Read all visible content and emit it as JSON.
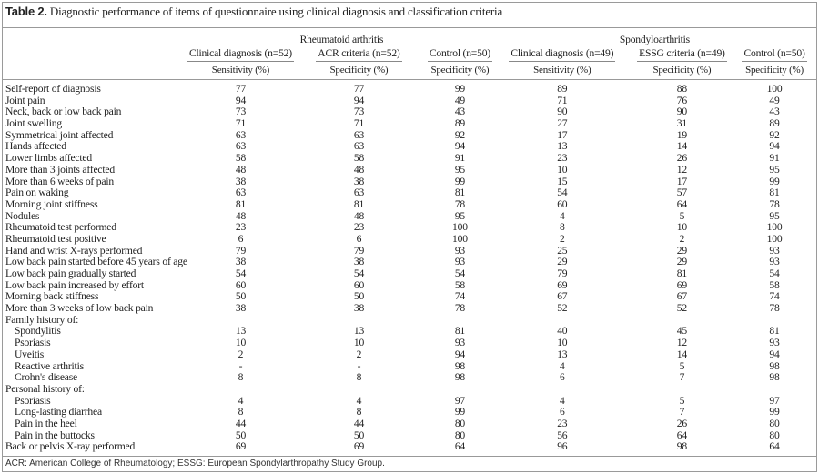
{
  "title": {
    "label": "Table 2.",
    "text": "Diagnostic performance of items of questionnaire using clinical diagnosis and classification criteria"
  },
  "groups": [
    "Rheumatoid arthritis",
    "Spondyloarthritis"
  ],
  "columns": [
    "Clinical diagnosis (n=52)",
    "ACR criteria (n=52)",
    "Control (n=50)",
    "Clinical diagnosis (n=49)",
    "ESSG criteria (n=49)",
    "Control (n=50)"
  ],
  "metrics": [
    "Sensitivity (%)",
    "Specificity (%)",
    "Specificity (%)",
    "Sensitivity (%)",
    "Specificity (%)",
    "Specificity (%)"
  ],
  "rows": [
    {
      "label": "Self-report of diagnosis",
      "values": [
        "77",
        "77",
        "99",
        "89",
        "88",
        "100"
      ]
    },
    {
      "label": "Joint pain",
      "values": [
        "94",
        "94",
        "49",
        "71",
        "76",
        "49"
      ]
    },
    {
      "label": "Neck, back or low back pain",
      "values": [
        "73",
        "73",
        "43",
        "90",
        "90",
        "43"
      ]
    },
    {
      "label": "Joint swelling",
      "values": [
        "71",
        "71",
        "89",
        "27",
        "31",
        "89"
      ]
    },
    {
      "label": "Symmetrical joint affected",
      "values": [
        "63",
        "63",
        "92",
        "17",
        "19",
        "92"
      ]
    },
    {
      "label": "Hands affected",
      "values": [
        "63",
        "63",
        "94",
        "13",
        "14",
        "94"
      ]
    },
    {
      "label": "Lower limbs affected",
      "values": [
        "58",
        "58",
        "91",
        "23",
        "26",
        "91"
      ]
    },
    {
      "label": "More than 3 joints affected",
      "values": [
        "48",
        "48",
        "95",
        "10",
        "12",
        "95"
      ]
    },
    {
      "label": "More than 6 weeks of pain",
      "values": [
        "38",
        "38",
        "99",
        "15",
        "17",
        "99"
      ]
    },
    {
      "label": "Pain on waking",
      "values": [
        "63",
        "63",
        "81",
        "54",
        "57",
        "81"
      ]
    },
    {
      "label": "Morning joint stiffness",
      "values": [
        "81",
        "81",
        "78",
        "60",
        "64",
        "78"
      ]
    },
    {
      "label": "Nodules",
      "values": [
        "48",
        "48",
        "95",
        "4",
        "5",
        "95"
      ]
    },
    {
      "label": "Rheumatoid test performed",
      "values": [
        "23",
        "23",
        "100",
        "8",
        "10",
        "100"
      ]
    },
    {
      "label": "Rheumatoid test positive",
      "values": [
        "6",
        "6",
        "100",
        "2",
        "2",
        "100"
      ]
    },
    {
      "label": "Hand and wrist X-rays performed",
      "values": [
        "79",
        "79",
        "93",
        "25",
        "29",
        "93"
      ]
    },
    {
      "label": "Low back pain started before 45 years of age",
      "values": [
        "38",
        "38",
        "93",
        "29",
        "29",
        "93"
      ]
    },
    {
      "label": "Low back pain gradually started",
      "values": [
        "54",
        "54",
        "54",
        "79",
        "81",
        "54"
      ]
    },
    {
      "label": "Low back pain increased by effort",
      "values": [
        "60",
        "60",
        "58",
        "69",
        "69",
        "58"
      ]
    },
    {
      "label": "Morning back stiffness",
      "values": [
        "50",
        "50",
        "74",
        "67",
        "67",
        "74"
      ]
    },
    {
      "label": "More than 3 weeks of low back pain",
      "values": [
        "38",
        "38",
        "78",
        "52",
        "52",
        "78"
      ]
    },
    {
      "label": "Family history of:",
      "values": [
        "",
        "",
        "",
        "",
        "",
        ""
      ],
      "section": true
    },
    {
      "label": "Spondylitis",
      "values": [
        "13",
        "13",
        "81",
        "40",
        "45",
        "81"
      ],
      "indent": true
    },
    {
      "label": "Psoriasis",
      "values": [
        "10",
        "10",
        "93",
        "10",
        "12",
        "93"
      ],
      "indent": true
    },
    {
      "label": "Uveitis",
      "values": [
        "2",
        "2",
        "94",
        "13",
        "14",
        "94"
      ],
      "indent": true
    },
    {
      "label": "Reactive arthritis",
      "values": [
        "-",
        "-",
        "98",
        "4",
        "5",
        "98"
      ],
      "indent": true
    },
    {
      "label": "Crohn's disease",
      "values": [
        "8",
        "8",
        "98",
        "6",
        "7",
        "98"
      ],
      "indent": true
    },
    {
      "label": "Personal history of:",
      "values": [
        "",
        "",
        "",
        "",
        "",
        ""
      ],
      "section": true
    },
    {
      "label": "Psoriasis",
      "values": [
        "4",
        "4",
        "97",
        "4",
        "5",
        "97"
      ],
      "indent": true
    },
    {
      "label": "Long-lasting diarrhea",
      "values": [
        "8",
        "8",
        "99",
        "6",
        "7",
        "99"
      ],
      "indent": true
    },
    {
      "label": "Pain in the heel",
      "values": [
        "44",
        "44",
        "80",
        "23",
        "26",
        "80"
      ],
      "indent": true
    },
    {
      "label": "Pain in the buttocks",
      "values": [
        "50",
        "50",
        "80",
        "56",
        "64",
        "80"
      ],
      "indent": true
    },
    {
      "label": "Back or pelvis X-ray performed",
      "values": [
        "69",
        "69",
        "64",
        "96",
        "98",
        "64"
      ]
    }
  ],
  "footnote": "ACR: American College of Rheumatology; ESSG: European Spondylarthropathy Study Group."
}
